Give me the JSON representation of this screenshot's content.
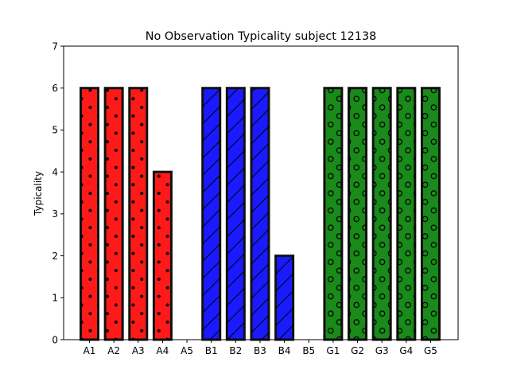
{
  "chart_data": {
    "type": "bar",
    "title": "No Observation Typicality subject 12138",
    "xlabel": "",
    "ylabel": "Typicality",
    "ylim": [
      0,
      7
    ],
    "yticks": [
      "0",
      "1",
      "2",
      "3",
      "4",
      "5",
      "6",
      "7"
    ],
    "grid": false,
    "categories": [
      "A1",
      "A2",
      "A3",
      "A4",
      "A5",
      "B1",
      "B2",
      "B3",
      "B4",
      "B5",
      "G1",
      "G2",
      "G3",
      "G4",
      "G5"
    ],
    "values": [
      6,
      6,
      6,
      4,
      0,
      6,
      6,
      6,
      2,
      0,
      6,
      6,
      6,
      6,
      6
    ],
    "bar_groups": [
      {
        "prefix": "A",
        "color": "#ff1a1a",
        "hatch": "dots"
      },
      {
        "prefix": "B",
        "color": "#1a1aff",
        "hatch": "diagonal"
      },
      {
        "prefix": "G",
        "color": "#1a8a1a",
        "hatch": "circles"
      }
    ],
    "edge_color": "#111111"
  }
}
